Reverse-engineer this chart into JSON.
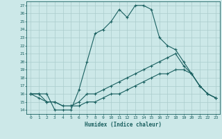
{
  "xlabel": "Humidex (Indice chaleur)",
  "background_color": "#cce8e8",
  "grid_color": "#aacccc",
  "line_color": "#1a6060",
  "xlim": [
    -0.5,
    23.5
  ],
  "ylim": [
    13.5,
    27.5
  ],
  "xticks": [
    0,
    1,
    2,
    3,
    4,
    5,
    6,
    7,
    8,
    9,
    10,
    11,
    12,
    13,
    14,
    15,
    16,
    17,
    18,
    19,
    20,
    21,
    22,
    23
  ],
  "yticks": [
    14,
    15,
    16,
    17,
    18,
    19,
    20,
    21,
    22,
    23,
    24,
    25,
    26,
    27
  ],
  "curve1_x": [
    0,
    1,
    2,
    3,
    4,
    5,
    6,
    7,
    8,
    9,
    10,
    11,
    12,
    13,
    14,
    15,
    16,
    17,
    18,
    19,
    20,
    21,
    22,
    23
  ],
  "curve1_y": [
    16,
    16,
    16,
    14,
    14,
    14,
    16.5,
    20,
    23.5,
    24,
    25,
    26.5,
    25.5,
    27,
    27,
    26.5,
    23,
    22,
    21.5,
    20,
    18.5,
    17,
    16,
    15.5
  ],
  "curve2_x": [
    0,
    1,
    2,
    3,
    4,
    5,
    6,
    7,
    8,
    9,
    10,
    11,
    12,
    13,
    14,
    15,
    16,
    17,
    18,
    19,
    20,
    21,
    22,
    23
  ],
  "curve2_y": [
    16,
    16,
    15,
    15,
    14.5,
    14.5,
    15,
    16,
    16,
    16.5,
    17,
    17.5,
    18,
    18.5,
    19,
    19.5,
    20,
    20.5,
    21,
    19.5,
    18.5,
    17,
    16,
    15.5
  ],
  "curve3_x": [
    0,
    1,
    2,
    3,
    4,
    5,
    6,
    7,
    8,
    9,
    10,
    11,
    12,
    13,
    14,
    15,
    16,
    17,
    18,
    19,
    20,
    21,
    22,
    23
  ],
  "curve3_y": [
    16,
    15.5,
    15,
    15,
    14.5,
    14.5,
    14.5,
    15,
    15,
    15.5,
    16,
    16,
    16.5,
    17,
    17.5,
    18,
    18.5,
    18.5,
    19,
    19,
    18.5,
    17,
    16,
    15.5
  ]
}
